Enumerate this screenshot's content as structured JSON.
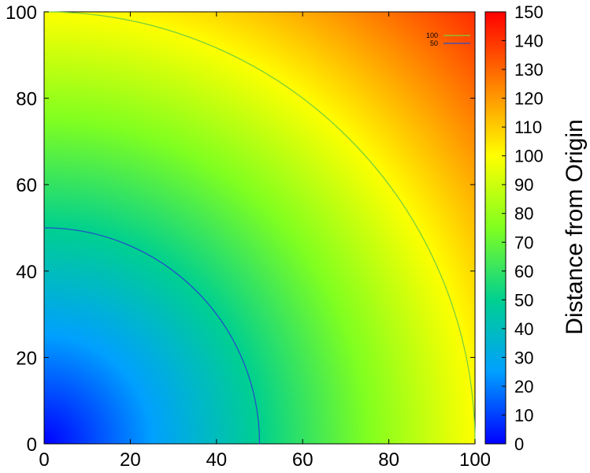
{
  "chart_data": {
    "type": "heatmap",
    "title": "",
    "xlabel": "",
    "ylabel": "",
    "xlim": [
      0,
      100
    ],
    "ylim": [
      0,
      100
    ],
    "x_ticks": [
      "0",
      "20",
      "40",
      "60",
      "80",
      "100"
    ],
    "y_ticks": [
      "0",
      "20",
      "40",
      "60",
      "80",
      "100"
    ],
    "function": "sqrt(x^2 + y^2)",
    "colorbar": {
      "label": "Distance from Origin",
      "range": [
        0,
        150
      ],
      "ticks": [
        "0",
        "10",
        "20",
        "30",
        "40",
        "50",
        "60",
        "70",
        "80",
        "90",
        "100",
        "110",
        "120",
        "130",
        "140",
        "150"
      ]
    },
    "contours": [
      {
        "name": "100",
        "level": 100,
        "color": "#7ccf3a"
      },
      {
        "name": "50",
        "level": 50,
        "color": "#2450c8"
      }
    ],
    "legend_position": "top-right",
    "grid": false,
    "colormap": [
      "#0000ff",
      "#00a0ff",
      "#00d090",
      "#80ff20",
      "#ffff00",
      "#ff8000",
      "#ff0000"
    ]
  }
}
